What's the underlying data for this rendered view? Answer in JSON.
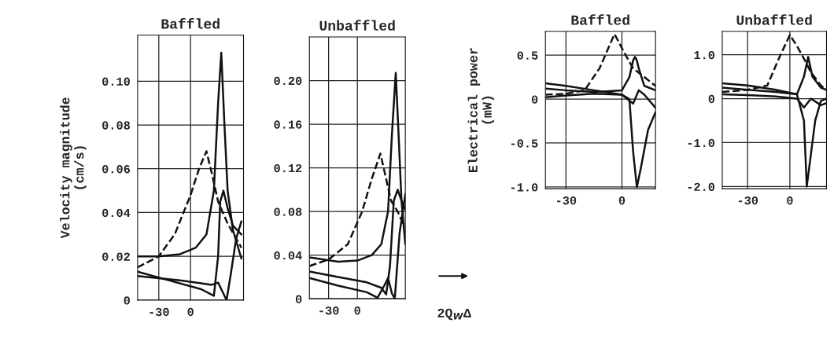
{
  "chart_data": [
    {
      "type": "line",
      "title": "Baffled",
      "ylabel": "Velocity magnitude\n(cm/s)",
      "xlim": [
        -50,
        50
      ],
      "xticks": [
        -30,
        0
      ],
      "ylim": [
        0,
        0.121
      ],
      "yticks": [
        0,
        0.02,
        0.04,
        0.06,
        0.08,
        {
          "value": 0.1,
          "label": "0.10"
        }
      ],
      "grid": true,
      "legend": false,
      "series": [
        {
          "color": "#111111",
          "line_style": "dashed",
          "x": [
            -50,
            -30,
            -15,
            0,
            8,
            15,
            20,
            26,
            35,
            48
          ],
          "values": [
            0.015,
            0.02,
            0.03,
            0.048,
            0.06,
            0.068,
            0.058,
            0.045,
            0.035,
            0.024
          ]
        },
        {
          "color": "#111111",
          "line_style": "solid",
          "x": [
            -50,
            -30,
            -10,
            5,
            15,
            22,
            26,
            29,
            32,
            35,
            40,
            48
          ],
          "values": [
            0.02,
            0.02,
            0.021,
            0.024,
            0.03,
            0.05,
            0.09,
            0.113,
            0.08,
            0.05,
            0.032,
            0.019
          ]
        },
        {
          "color": "#111111",
          "line_style": "solid",
          "x": [
            -50,
            -20,
            10,
            22,
            26,
            28,
            31,
            35,
            40,
            48
          ],
          "values": [
            0.013,
            0.009,
            0.005,
            0.002,
            0.02,
            0.045,
            0.05,
            0.042,
            0.034,
            0.03
          ]
        },
        {
          "color": "#111111",
          "line_style": "solid",
          "x": [
            -50,
            -10,
            20,
            26,
            30,
            34,
            38,
            43,
            48
          ],
          "values": [
            0.011,
            0.009,
            0.007,
            0.008,
            0.004,
            0.0,
            0.012,
            0.028,
            0.036
          ]
        }
      ]
    },
    {
      "type": "line",
      "title": "Unbaffled",
      "xlim": [
        -50,
        50
      ],
      "xticks": [
        -30,
        0
      ],
      "ylim": [
        0,
        0.24
      ],
      "yticks": [
        0,
        0.04,
        0.08,
        0.12,
        0.16,
        {
          "value": 0.2,
          "label": "0.20"
        }
      ],
      "grid": true,
      "legend": false,
      "series": [
        {
          "color": "#111111",
          "line_style": "dashed",
          "x": [
            -50,
            -30,
            -10,
            5,
            15,
            24,
            30,
            35,
            42,
            48
          ],
          "values": [
            0.03,
            0.036,
            0.05,
            0.08,
            0.11,
            0.133,
            0.11,
            0.09,
            0.08,
            0.068
          ]
        },
        {
          "color": "#111111",
          "line_style": "solid",
          "x": [
            -50,
            -20,
            0,
            15,
            25,
            32,
            36,
            40,
            43,
            46,
            50
          ],
          "values": [
            0.038,
            0.034,
            0.035,
            0.04,
            0.05,
            0.08,
            0.15,
            0.207,
            0.15,
            0.09,
            0.05
          ]
        },
        {
          "color": "#111111",
          "line_style": "solid",
          "x": [
            -50,
            -20,
            10,
            25,
            30,
            34,
            38,
            42,
            46,
            50
          ],
          "values": [
            0.025,
            0.02,
            0.015,
            0.01,
            0.004,
            0.03,
            0.09,
            0.1,
            0.09,
            0.082
          ]
        },
        {
          "color": "#111111",
          "line_style": "solid",
          "x": [
            -50,
            -20,
            10,
            21,
            28,
            32,
            36,
            39,
            44,
            50
          ],
          "values": [
            0.019,
            0.012,
            0.006,
            0.001,
            0.012,
            0.019,
            0.005,
            0.0,
            0.06,
            0.096
          ]
        }
      ]
    },
    {
      "type": "line",
      "title": "Baffled",
      "ylabel": "Electrical power\n(mW)",
      "xlim": [
        -41,
        18
      ],
      "xticks": [
        -30,
        0
      ],
      "ylim": [
        -1.02,
        0.77
      ],
      "yticks": [
        {
          "value": -1.0,
          "label": "-1.0"
        },
        -0.5,
        0,
        0.5
      ],
      "grid": true,
      "legend": false,
      "annotations": [
        "2Q$_{W}$Δ"
      ],
      "series": [
        {
          "color": "#111111",
          "line_style": "dashed",
          "x": [
            -41,
            -30,
            -20,
            -12,
            -4,
            2,
            6,
            12,
            18
          ],
          "values": [
            0.05,
            0.06,
            0.1,
            0.35,
            0.74,
            0.5,
            0.35,
            0.25,
            0.15
          ]
        },
        {
          "color": "#111111",
          "line_style": "solid",
          "x": [
            -41,
            -30,
            -15,
            0,
            4,
            6,
            8,
            10,
            14,
            18
          ],
          "values": [
            0.18,
            0.15,
            0.1,
            0.05,
            0.0,
            -0.6,
            -1.0,
            -0.8,
            -0.35,
            -0.15
          ]
        },
        {
          "color": "#111111",
          "line_style": "solid",
          "x": [
            -41,
            -30,
            -15,
            0,
            4,
            6,
            7,
            8,
            9,
            12,
            18
          ],
          "values": [
            0.12,
            0.1,
            0.08,
            0.1,
            0.25,
            0.44,
            0.48,
            0.44,
            0.35,
            0.15,
            0.1
          ]
        },
        {
          "color": "#111111",
          "line_style": "solid",
          "x": [
            -41,
            -30,
            -15,
            0,
            6,
            9,
            12,
            18
          ],
          "values": [
            0.02,
            0.04,
            0.06,
            0.05,
            -0.05,
            0.1,
            0.05,
            -0.1
          ]
        }
      ]
    },
    {
      "type": "line",
      "title": "Unbaffled",
      "xlim": [
        -48,
        26
      ],
      "xticks": [
        -30,
        0
      ],
      "ylim": [
        -2.05,
        1.53
      ],
      "yticks": [
        {
          "value": -2.0,
          "label": "-2.0"
        },
        {
          "value": -1.0,
          "label": "-1.0"
        },
        0,
        {
          "value": 1.0,
          "label": "1.0"
        }
      ],
      "grid": true,
      "legend": false,
      "series": [
        {
          "color": "#111111",
          "line_style": "dashed",
          "x": [
            -48,
            -30,
            -16,
            -8,
            0,
            5,
            9,
            15,
            22,
            26
          ],
          "values": [
            0.15,
            0.2,
            0.3,
            0.9,
            1.45,
            1.2,
            0.97,
            0.6,
            0.3,
            0.2
          ]
        },
        {
          "color": "#111111",
          "line_style": "solid",
          "x": [
            -48,
            -30,
            -10,
            5,
            10,
            12,
            14,
            18,
            22,
            26
          ],
          "values": [
            0.35,
            0.3,
            0.2,
            0.1,
            -0.5,
            -2.0,
            -1.5,
            -0.5,
            -0.05,
            0.0
          ]
        },
        {
          "color": "#111111",
          "line_style": "solid",
          "x": [
            -48,
            -30,
            -10,
            5,
            10,
            13,
            16,
            22,
            26
          ],
          "values": [
            0.25,
            0.2,
            0.15,
            0.1,
            0.5,
            0.95,
            0.5,
            0.25,
            0.2
          ]
        },
        {
          "color": "#111111",
          "line_style": "solid",
          "x": [
            -48,
            -30,
            -10,
            5,
            10,
            15,
            22,
            26
          ],
          "values": [
            0.1,
            0.08,
            0.05,
            0.0,
            -0.2,
            0.0,
            -0.15,
            -0.1
          ]
        }
      ]
    }
  ]
}
